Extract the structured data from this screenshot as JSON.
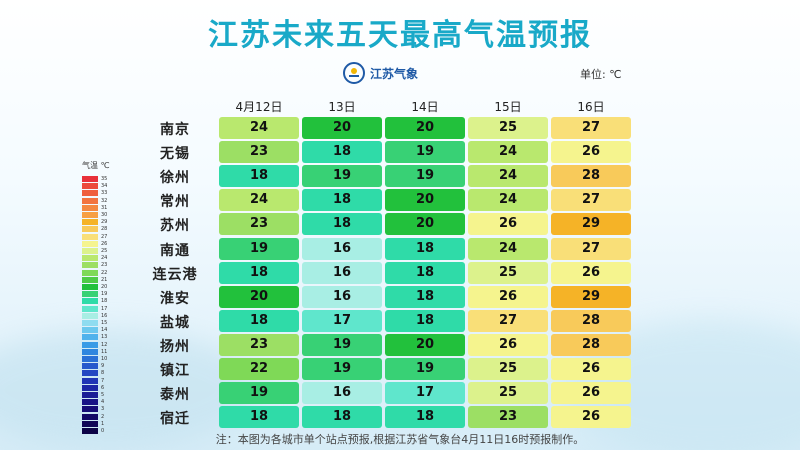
{
  "title": "江苏未来五天最高气温预报",
  "logo_text": "江苏气象",
  "unit": "单位: ℃",
  "note": "注：本图为各城市单个站点预报,根据江苏省气象台4月11日16时预报制作。",
  "legend": {
    "title": "气温 ℃",
    "labels": [
      "35",
      "34",
      "33",
      "32",
      "31",
      "30",
      "29",
      "28",
      "27",
      "26",
      "25",
      "24",
      "23",
      "22",
      "21",
      "20",
      "19",
      "18",
      "17",
      "16",
      "15",
      "14",
      "13",
      "12",
      "11",
      "10",
      "9",
      "8",
      "7",
      "6",
      "5",
      "4",
      "3",
      "2",
      "1",
      "0"
    ]
  },
  "chart_data": {
    "type": "table",
    "days": [
      "4月12日",
      "13日",
      "14日",
      "15日",
      "16日"
    ],
    "cities": [
      "南京",
      "无锡",
      "徐州",
      "常州",
      "苏州",
      "南通",
      "连云港",
      "淮安",
      "盐城",
      "扬州",
      "镇江",
      "泰州",
      "宿迁"
    ],
    "values": [
      [
        24,
        20,
        20,
        25,
        27
      ],
      [
        23,
        18,
        19,
        24,
        26
      ],
      [
        18,
        19,
        19,
        24,
        28
      ],
      [
        24,
        18,
        20,
        24,
        27
      ],
      [
        23,
        18,
        20,
        26,
        29
      ],
      [
        19,
        16,
        18,
        24,
        27
      ],
      [
        18,
        16,
        18,
        25,
        26
      ],
      [
        20,
        16,
        18,
        26,
        29
      ],
      [
        18,
        17,
        18,
        27,
        28
      ],
      [
        23,
        19,
        20,
        26,
        28
      ],
      [
        22,
        19,
        19,
        25,
        26
      ],
      [
        19,
        16,
        17,
        25,
        26
      ],
      [
        18,
        18,
        18,
        23,
        26
      ]
    ],
    "colors": {
      "16": "#a8eee4",
      "17": "#5fe6cc",
      "18": "#2fdba8",
      "19": "#38d175",
      "20": "#22c13c",
      "22": "#7fd957",
      "23": "#9cdf64",
      "24": "#b9e86e",
      "25": "#dcf28c",
      "26": "#f5f48e",
      "27": "#f9df78",
      "28": "#f8ca5a",
      "29": "#f5b327"
    }
  }
}
